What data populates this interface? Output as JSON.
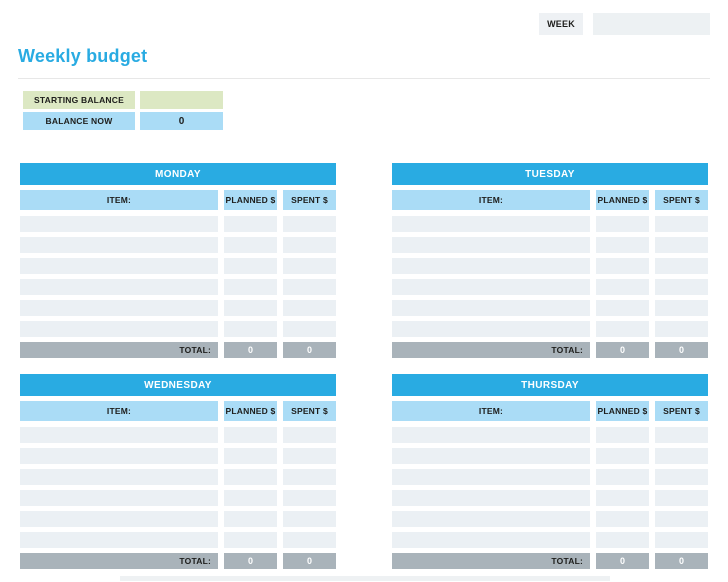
{
  "week": {
    "label": "WEEK",
    "value": ""
  },
  "title": "Weekly budget",
  "balance": {
    "starting": {
      "label": "STARTING BALANCE",
      "value": ""
    },
    "now": {
      "label": "BALANCE NOW",
      "value": "0"
    }
  },
  "table_headers": {
    "item": "ITEM:",
    "planned": "PLANNED $",
    "spent": "SPENT $",
    "total": "TOTAL:"
  },
  "days": [
    {
      "name": "MONDAY",
      "rows": [
        {
          "item": "",
          "planned": "",
          "spent": ""
        },
        {
          "item": "",
          "planned": "",
          "spent": ""
        },
        {
          "item": "",
          "planned": "",
          "spent": ""
        },
        {
          "item": "",
          "planned": "",
          "spent": ""
        },
        {
          "item": "",
          "planned": "",
          "spent": ""
        },
        {
          "item": "",
          "planned": "",
          "spent": ""
        }
      ],
      "total": {
        "planned": "0",
        "spent": "0"
      }
    },
    {
      "name": "TUESDAY",
      "rows": [
        {
          "item": "",
          "planned": "",
          "spent": ""
        },
        {
          "item": "",
          "planned": "",
          "spent": ""
        },
        {
          "item": "",
          "planned": "",
          "spent": ""
        },
        {
          "item": "",
          "planned": "",
          "spent": ""
        },
        {
          "item": "",
          "planned": "",
          "spent": ""
        },
        {
          "item": "",
          "planned": "",
          "spent": ""
        }
      ],
      "total": {
        "planned": "0",
        "spent": "0"
      }
    },
    {
      "name": "WEDNESDAY",
      "rows": [
        {
          "item": "",
          "planned": "",
          "spent": ""
        },
        {
          "item": "",
          "planned": "",
          "spent": ""
        },
        {
          "item": "",
          "planned": "",
          "spent": ""
        },
        {
          "item": "",
          "planned": "",
          "spent": ""
        },
        {
          "item": "",
          "planned": "",
          "spent": ""
        },
        {
          "item": "",
          "planned": "",
          "spent": ""
        }
      ],
      "total": {
        "planned": "0",
        "spent": "0"
      }
    },
    {
      "name": "THURSDAY",
      "rows": [
        {
          "item": "",
          "planned": "",
          "spent": ""
        },
        {
          "item": "",
          "planned": "",
          "spent": ""
        },
        {
          "item": "",
          "planned": "",
          "spent": ""
        },
        {
          "item": "",
          "planned": "",
          "spent": ""
        },
        {
          "item": "",
          "planned": "",
          "spent": ""
        },
        {
          "item": "",
          "planned": "",
          "spent": ""
        }
      ],
      "total": {
        "planned": "0",
        "spent": "0"
      }
    }
  ],
  "colors": {
    "accent_blue": "#29abe2",
    "light_blue": "#aadcf6",
    "light_green": "#dce8c3",
    "row_bg": "#ebf0f4",
    "total_gray": "#a9b3ba",
    "week_box_gray": "#eef1f4"
  }
}
